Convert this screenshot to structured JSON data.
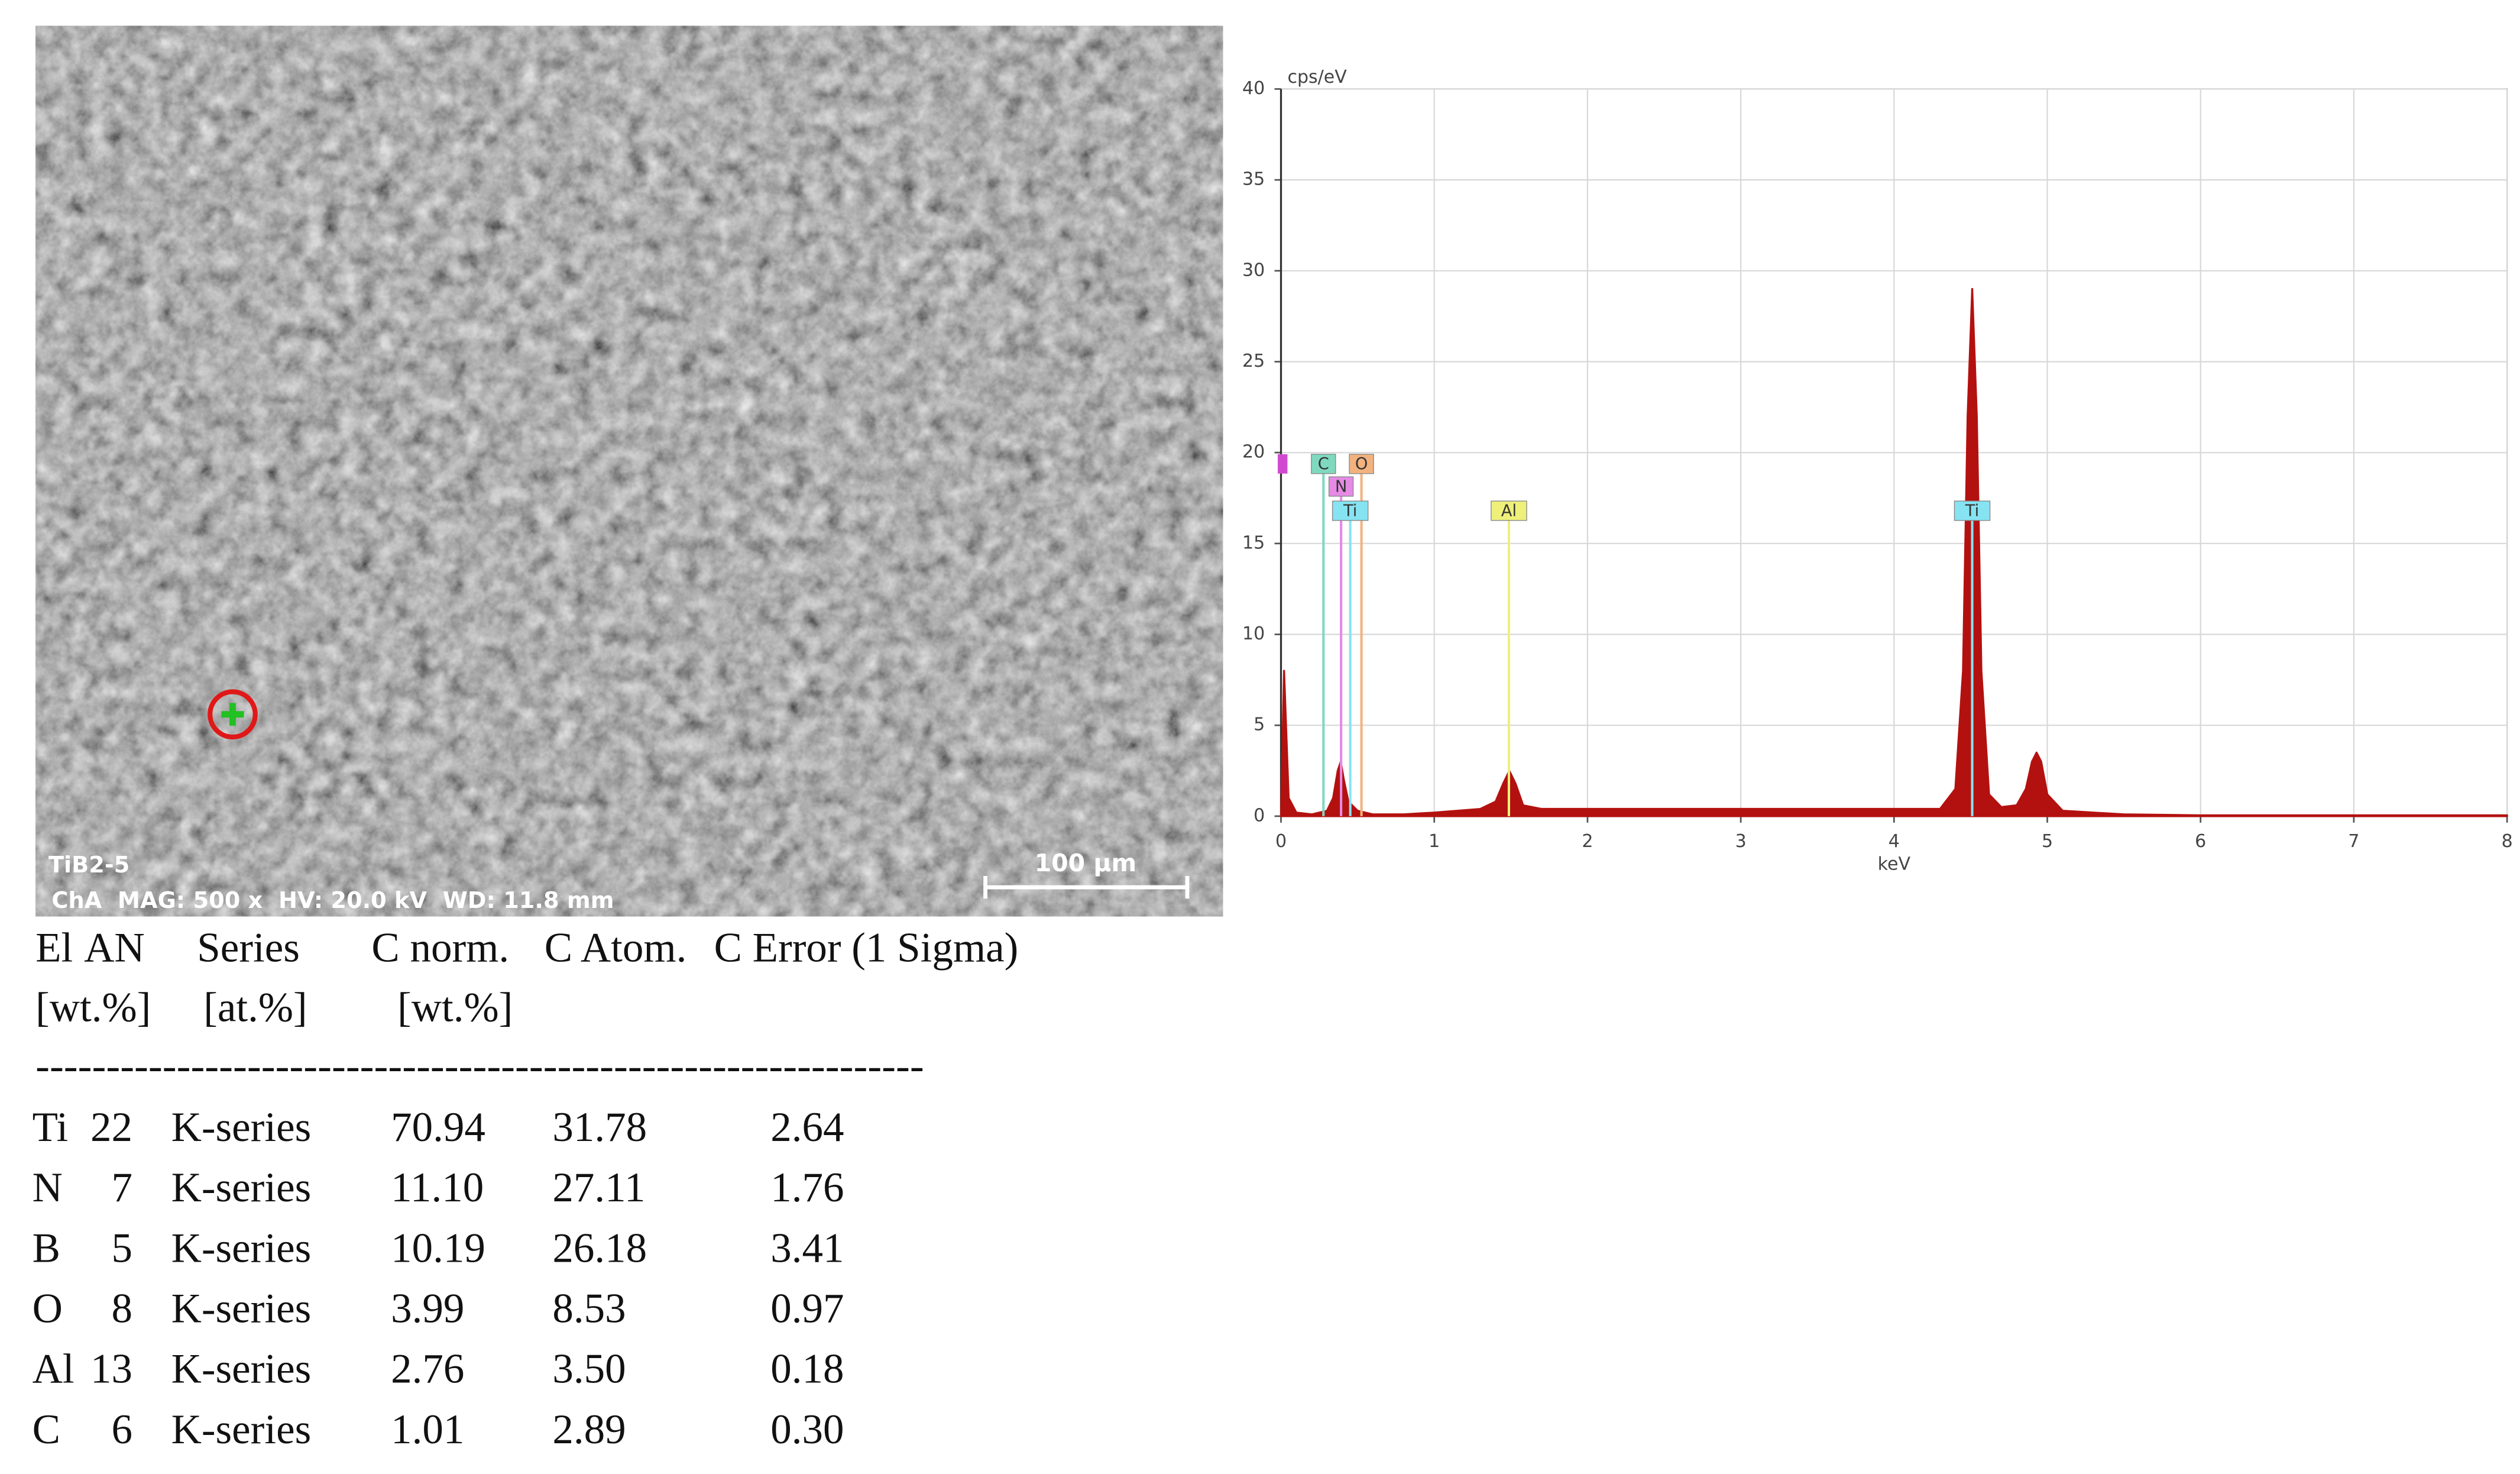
{
  "image": {
    "sample": "TiB2-5",
    "info": "ChA  MAG: 500 x  HV: 20.0 kV  WD: 11.8 mm",
    "scale_bar": "100 µm"
  },
  "chart_data": {
    "type": "area",
    "y_label": "cps/eV",
    "x_label": "keV",
    "xlim": [
      0,
      8
    ],
    "xticks": [
      0,
      1,
      2,
      3,
      4,
      5,
      6,
      7,
      8
    ],
    "ylim": [
      0,
      40
    ],
    "yticks": [
      0,
      5,
      10,
      15,
      20,
      25,
      30,
      35,
      40
    ],
    "grid": true,
    "color": "#b3110f",
    "x": [
      0,
      0.02,
      0.05,
      0.1,
      0.2,
      0.3,
      0.34,
      0.37,
      0.39,
      0.41,
      0.44,
      0.5,
      0.6,
      0.8,
      1.0,
      1.3,
      1.4,
      1.45,
      1.49,
      1.53,
      1.58,
      1.7,
      2.0,
      3.0,
      4.0,
      4.3,
      4.4,
      4.45,
      4.48,
      4.51,
      4.54,
      4.57,
      4.62,
      4.7,
      4.8,
      4.86,
      4.9,
      4.93,
      4.96,
      5.0,
      5.1,
      5.5,
      6.0,
      7.0,
      8.0
    ],
    "values": [
      0,
      8,
      1,
      0.2,
      0.1,
      0.3,
      1.0,
      2.5,
      3.0,
      2.0,
      0.8,
      0.3,
      0.1,
      0.1,
      0.2,
      0.4,
      0.8,
      1.8,
      2.5,
      1.8,
      0.6,
      0.4,
      0.4,
      0.4,
      0.4,
      0.4,
      1.5,
      8,
      22,
      29,
      22,
      8,
      1.2,
      0.5,
      0.6,
      1.5,
      3.0,
      3.5,
      3.0,
      1.2,
      0.3,
      0.1,
      0.05,
      0.05,
      0.05
    ],
    "markers": [
      {
        "label": "C",
        "x": 0.277,
        "color": "#7fd9bf"
      },
      {
        "label": "O",
        "x": 0.525,
        "color": "#f2b27e"
      },
      {
        "label": "N",
        "x": 0.392,
        "color": "#e58ae5"
      },
      {
        "label": "Ti",
        "x": 0.452,
        "color": "#86e3f2"
      },
      {
        "label": "Al",
        "x": 1.487,
        "color": "#eef07a"
      },
      {
        "label": "Ti",
        "x": 4.51,
        "color": "#86e3f2"
      }
    ]
  },
  "table": {
    "header": [
      [
        "El",
        "AN",
        "Series",
        "C norm.",
        "C Atom.",
        "C Error (1 Sigma)"
      ],
      [
        "[wt.%]",
        "[at.%]",
        "[wt.%]"
      ]
    ],
    "rule": "---------------------------------------------------------------",
    "rows": [
      [
        "Ti",
        "22",
        "K-series",
        "70.94",
        "31.78",
        "2.64"
      ],
      [
        "N",
        "7",
        "K-series",
        "11.10",
        "27.11",
        "1.76"
      ],
      [
        "B",
        "5",
        "K-series",
        "10.19",
        "26.18",
        "3.41"
      ],
      [
        "O",
        "8",
        "K-series",
        "3.99",
        "8.53",
        "0.97"
      ],
      [
        "Al",
        "13",
        "K-series",
        "2.76",
        "3.50",
        "0.18"
      ],
      [
        "C",
        "6",
        "K-series",
        "1.01",
        "2.89",
        "0.30"
      ]
    ]
  }
}
